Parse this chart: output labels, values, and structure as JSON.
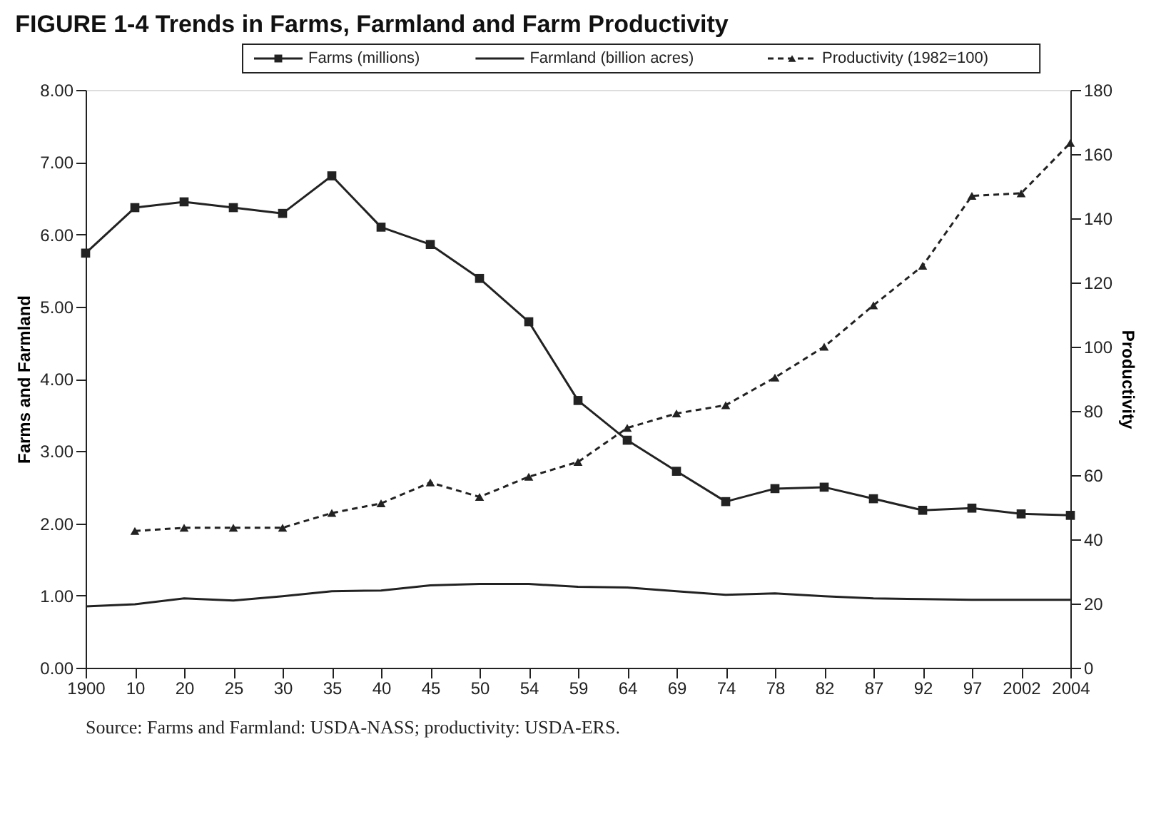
{
  "chart_data": {
    "type": "line",
    "title": "FIGURE 1-4 Trends in Farms, Farmland and Farm Productivity",
    "ylabel": "Farms and Farmland",
    "y2label": "Productivity",
    "categories": [
      "1900",
      "10",
      "20",
      "25",
      "30",
      "35",
      "40",
      "45",
      "50",
      "54",
      "59",
      "64",
      "69",
      "74",
      "78",
      "82",
      "87",
      "92",
      "97",
      "2002",
      "2004"
    ],
    "series": [
      {
        "name": "Farms (millions)",
        "color": "#222222",
        "marker": "square",
        "line_style": "solid",
        "values": [
          5.74,
          6.37,
          6.45,
          6.37,
          6.29,
          6.81,
          6.1,
          5.86,
          5.39,
          4.79,
          3.7,
          3.15,
          2.72,
          2.3,
          2.48,
          2.5,
          2.34,
          2.18,
          2.21,
          2.13,
          2.11
        ]
      },
      {
        "name": "Farmland (billion acres)",
        "color": "#222222",
        "marker": "none",
        "line_style": "solid",
        "values": [
          0.85,
          0.88,
          0.96,
          0.93,
          0.99,
          1.06,
          1.07,
          1.14,
          1.16,
          1.16,
          1.12,
          1.11,
          1.06,
          1.01,
          1.03,
          0.99,
          0.96,
          0.95,
          0.94,
          0.94,
          0.94
        ]
      },
      {
        "name": "Productivity (1982=100)",
        "color": "#222222",
        "marker": "triangle",
        "line_style": "dashed",
        "axis": "y2",
        "values": [
          null,
          42.6,
          43.6,
          43.6,
          43.6,
          48.2,
          51.2,
          57.7,
          53.2,
          59.5,
          64.1,
          74.7,
          79.2,
          81.8,
          90.4,
          100,
          112.9,
          125.2,
          147,
          147.8,
          163.5
        ]
      }
    ],
    "ylim": [
      0,
      8
    ],
    "yticks": [
      {
        "value": 0,
        "label": "0.00"
      },
      {
        "value": 1,
        "label": "1.00"
      },
      {
        "value": 2,
        "label": "2.00"
      },
      {
        "value": 3,
        "label": "3.00"
      },
      {
        "value": 4,
        "label": "4.00"
      },
      {
        "value": 5,
        "label": "5.00"
      },
      {
        "value": 6,
        "label": "6.00"
      },
      {
        "value": 7,
        "label": "7.00"
      },
      {
        "value": 8,
        "label": "8.00"
      }
    ],
    "y2lim": [
      0,
      180
    ],
    "y2ticks": [
      0,
      20,
      40,
      60,
      80,
      100,
      120,
      140,
      160,
      180
    ],
    "grid": false,
    "legend": "top",
    "annotations": [
      "Source: Farms and Farmland: USDA-NASS; productivity: USDA-ERS."
    ]
  }
}
